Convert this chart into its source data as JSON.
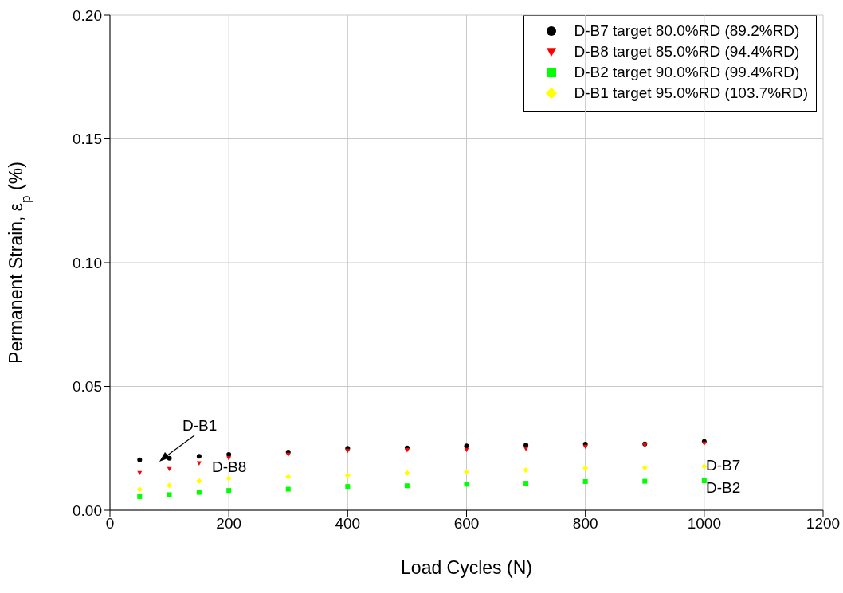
{
  "chart_data": {
    "type": "scatter",
    "xlabel": "Load Cycles (N)",
    "ylabel": "Permanent Strain, ε$_{p}$ (%)",
    "x": [
      50,
      100,
      150,
      200,
      300,
      400,
      500,
      600,
      700,
      800,
      900,
      1000
    ],
    "series": [
      {
        "name": "D-B7 target 80.0%RD (89.2%RD)",
        "color": "#000000",
        "marker": "circle",
        "values": [
          0.0203,
          0.021,
          0.0218,
          0.0225,
          0.0235,
          0.025,
          0.0252,
          0.026,
          0.0263,
          0.0267,
          0.0268,
          0.0277
        ]
      },
      {
        "name": "D-B8 target 85.0%RD (94.4%RD)",
        "color": "#ff0000",
        "marker": "triangle",
        "values": [
          0.0151,
          0.0167,
          0.019,
          0.021,
          0.0225,
          0.024,
          0.0243,
          0.0244,
          0.0248,
          0.0257,
          0.0262,
          0.027
        ]
      },
      {
        "name": "D-B2 target 90.0%RD (99.4%RD)",
        "color": "#00ff00",
        "marker": "square",
        "values": [
          0.0055,
          0.0063,
          0.0072,
          0.008,
          0.0085,
          0.0096,
          0.0099,
          0.0105,
          0.0109,
          0.0116,
          0.0117,
          0.0119
        ]
      },
      {
        "name": "D-B1 target 95.0%RD (103.7%RD)",
        "color": "#ffff00",
        "marker": "diamond",
        "values": [
          0.0084,
          0.01,
          0.0118,
          0.0129,
          0.0135,
          0.0141,
          0.015,
          0.0155,
          0.0162,
          0.017,
          0.0172,
          0.0177
        ]
      }
    ],
    "annotations": [
      "D-B1",
      "D-B8",
      "D-B7",
      "D-B2"
    ],
    "xlim": [
      0,
      1200
    ],
    "xticks": [
      0,
      200,
      400,
      600,
      800,
      1000,
      1200
    ],
    "ylim": [
      0,
      0.2
    ],
    "yticks": [
      {
        "value": 0,
        "label": "0.00"
      },
      {
        "value": 0.05,
        "label": "0.05"
      },
      {
        "value": 0.1,
        "label": "0.10"
      },
      {
        "value": 0.15,
        "label": "0.15"
      },
      {
        "value": 0.2,
        "label": "0.20"
      }
    ],
    "grid": true,
    "legend": "top right"
  }
}
